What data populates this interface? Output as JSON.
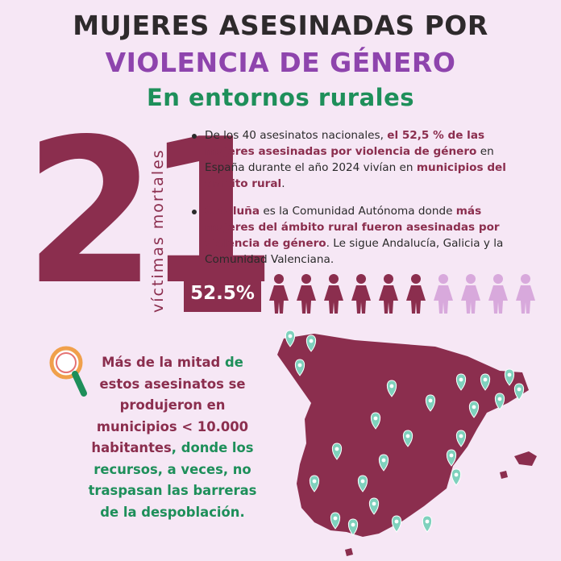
{
  "title": {
    "line1": "MUJERES ASESINADAS POR",
    "line2": "VIOLENCIA DE GÉNERO",
    "line3": "En entornos rurales"
  },
  "stat": {
    "number": "21",
    "label": "víctimas mortales",
    "percent_label": "52.5%",
    "percent_value": 52.5
  },
  "bullets": {
    "b1": {
      "t1": "De los 40 asesinatos nacionales, ",
      "h1": "el 52,5 % de las mujeres asesinadas por violencia de género",
      "t2": " en España durante el año 2024 vivían en ",
      "h2": "municipios del ámbito rural",
      "t3": "."
    },
    "b2": {
      "h1": "Cataluña",
      "t1": " es la Comunidad Autónoma donde ",
      "h2": "más mujeres del ámbito rural fueron asesinadas por violencia de género",
      "t2": ". Le sigue Andalucía, Galicia y la Comunidad Valenciana."
    }
  },
  "pictogram": {
    "total": 10,
    "highlighted": 6
  },
  "note": {
    "p1": "Más de la mitad",
    "p2": " de ",
    "p3": "estos asesinatos se produjeron en municipios < 10.000 habitantes",
    "p4": ", donde los recursos, a veces, no traspasan las barreras de la despoblación."
  },
  "map": {
    "pin_count": 25
  },
  "colors": {
    "background": "#f6e7f5",
    "dark": "#2e2a2c",
    "purple": "#8e44ad",
    "green": "#1e8f5a",
    "maroon": "#8b2e4e",
    "light_purple": "#d8a9dc",
    "teal": "#7fd1bd"
  }
}
